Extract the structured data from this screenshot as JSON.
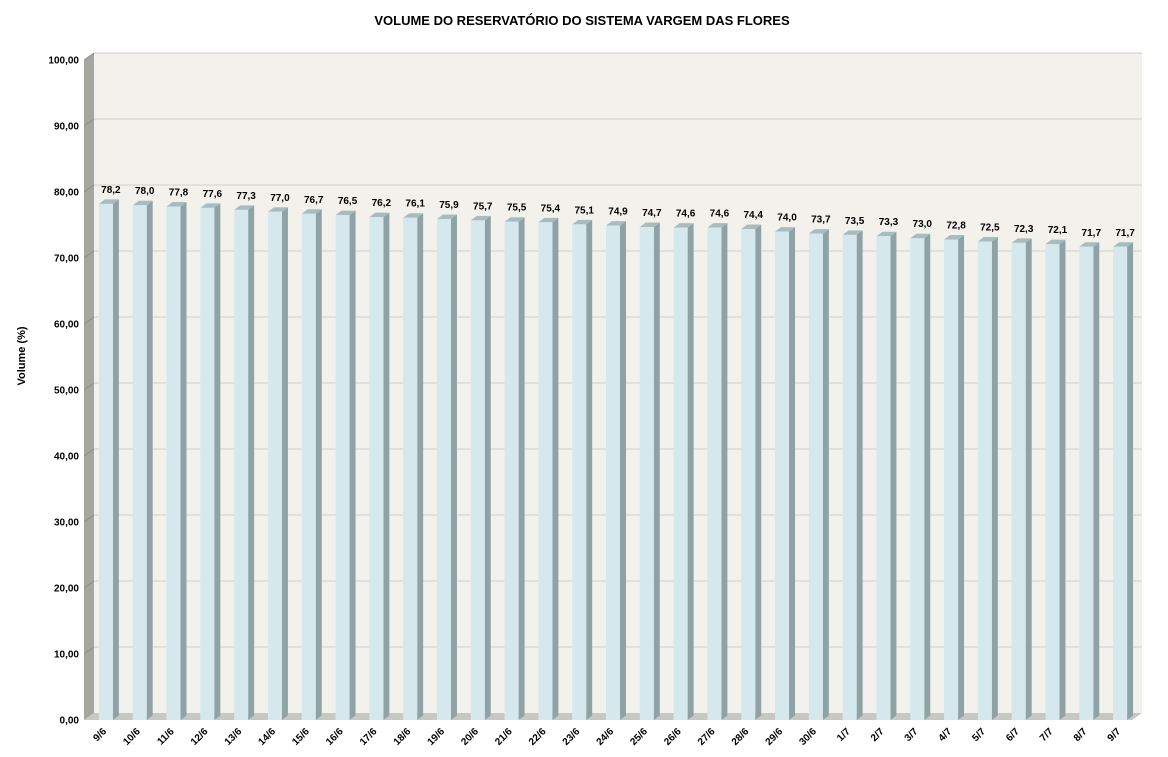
{
  "chart_data": {
    "type": "bar",
    "title": "VOLUME DO RESERVATÓRIO DO SISTEMA VARGEM DAS FLORES",
    "ylabel": "Volume (%)",
    "xlabel": "",
    "ylim": [
      0,
      100
    ],
    "ytick_step": 10,
    "ytick_labels": [
      "0,00",
      "10,00",
      "20,00",
      "30,00",
      "40,00",
      "50,00",
      "60,00",
      "70,00",
      "80,00",
      "90,00",
      "100,00"
    ],
    "categories": [
      "9/6",
      "10/6",
      "11/6",
      "12/6",
      "13/6",
      "14/6",
      "15/6",
      "16/6",
      "17/6",
      "18/6",
      "19/6",
      "20/6",
      "21/6",
      "22/6",
      "23/6",
      "24/6",
      "25/6",
      "26/6",
      "27/6",
      "28/6",
      "29/6",
      "30/6",
      "1/7",
      "2/7",
      "3/7",
      "4/7",
      "5/7",
      "6/7",
      "7/7",
      "8/7",
      "9/7"
    ],
    "values": [
      78.2,
      78.0,
      77.8,
      77.6,
      77.3,
      77.0,
      76.7,
      76.5,
      76.2,
      76.1,
      75.9,
      75.7,
      75.5,
      75.4,
      75.1,
      74.9,
      74.7,
      74.6,
      74.6,
      74.4,
      74.0,
      73.7,
      73.5,
      73.3,
      73.0,
      72.8,
      72.5,
      72.3,
      72.1,
      71.7,
      71.7
    ],
    "value_labels": [
      "78,2",
      "78,0",
      "77,8",
      "77,6",
      "77,3",
      "77,0",
      "76,7",
      "76,5",
      "76,2",
      "76,1",
      "75,9",
      "75,7",
      "75,5",
      "75,4",
      "75,1",
      "74,9",
      "74,7",
      "74,6",
      "74,6",
      "74,4",
      "74,0",
      "73,7",
      "73,5",
      "73,3",
      "73,0",
      "72,8",
      "72,5",
      "72,3",
      "72,1",
      "71,7",
      "71,7"
    ],
    "grid": true,
    "legend": "none",
    "colors": {
      "bar_front": "#d4e8ee",
      "bar_side": "#8fa3a6",
      "bar_top": "#a8bcbf",
      "plot_bg": "#f3f1ec",
      "wall_side": "#a6a6a0",
      "floor": "#c8c8c2",
      "gridline": "#d0d0d0"
    }
  }
}
